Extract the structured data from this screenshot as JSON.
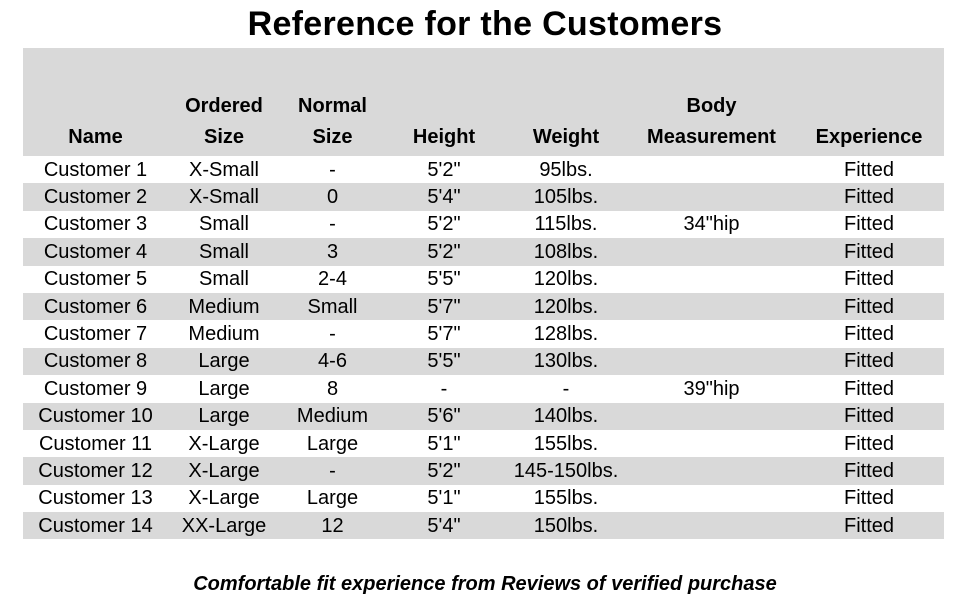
{
  "title": "Reference for the Customers",
  "table": {
    "header_top": [
      "",
      "Ordered",
      "Normal",
      "",
      "",
      "Body",
      ""
    ],
    "header_bottom": [
      "Name",
      "Size",
      "Size",
      "Height",
      "Weight",
      "Measurement",
      "Experience"
    ],
    "rows": [
      [
        "Customer 1",
        "X-Small",
        "-",
        "5'2\"",
        "95lbs.",
        "",
        "Fitted"
      ],
      [
        "Customer 2",
        "X-Small",
        "0",
        "5'4\"",
        "105lbs.",
        "",
        "Fitted"
      ],
      [
        "Customer 3",
        "Small",
        "-",
        "5'2\"",
        "115lbs.",
        "34\"hip",
        "Fitted"
      ],
      [
        "Customer 4",
        "Small",
        "3",
        "5'2\"",
        "108lbs.",
        "",
        "Fitted"
      ],
      [
        "Customer 5",
        "Small",
        "2-4",
        "5'5\"",
        "120lbs.",
        "",
        "Fitted"
      ],
      [
        "Customer 6",
        "Medium",
        "Small",
        "5'7\"",
        "120lbs.",
        "",
        "Fitted"
      ],
      [
        "Customer 7",
        "Medium",
        "-",
        "5'7\"",
        "128lbs.",
        "",
        "Fitted"
      ],
      [
        "Customer 8",
        "Large",
        "4-6",
        "5'5\"",
        "130lbs.",
        "",
        "Fitted"
      ],
      [
        "Customer 9",
        "Large",
        "8",
        "-",
        "-",
        "39\"hip",
        "Fitted"
      ],
      [
        "Customer 10",
        "Large",
        "Medium",
        "5'6\"",
        "140lbs.",
        "",
        "Fitted"
      ],
      [
        "Customer 11",
        "X-Large",
        "Large",
        "5'1\"",
        "155lbs.",
        "",
        "Fitted"
      ],
      [
        "Customer 12",
        "X-Large",
        "-",
        "5'2\"",
        "145-150lbs.",
        "",
        "Fitted"
      ],
      [
        "Customer 13",
        "X-Large",
        "Large",
        "5'1\"",
        "155lbs.",
        "",
        "Fitted"
      ],
      [
        "Customer 14",
        "XX-Large",
        "12",
        "5'4\"",
        "150lbs.",
        "",
        "Fitted"
      ]
    ]
  },
  "footer": "Comfortable fit experience from Reviews of verified purchase",
  "colors": {
    "band": "#d9d9d9",
    "background": "#ffffff",
    "text": "#000000"
  }
}
